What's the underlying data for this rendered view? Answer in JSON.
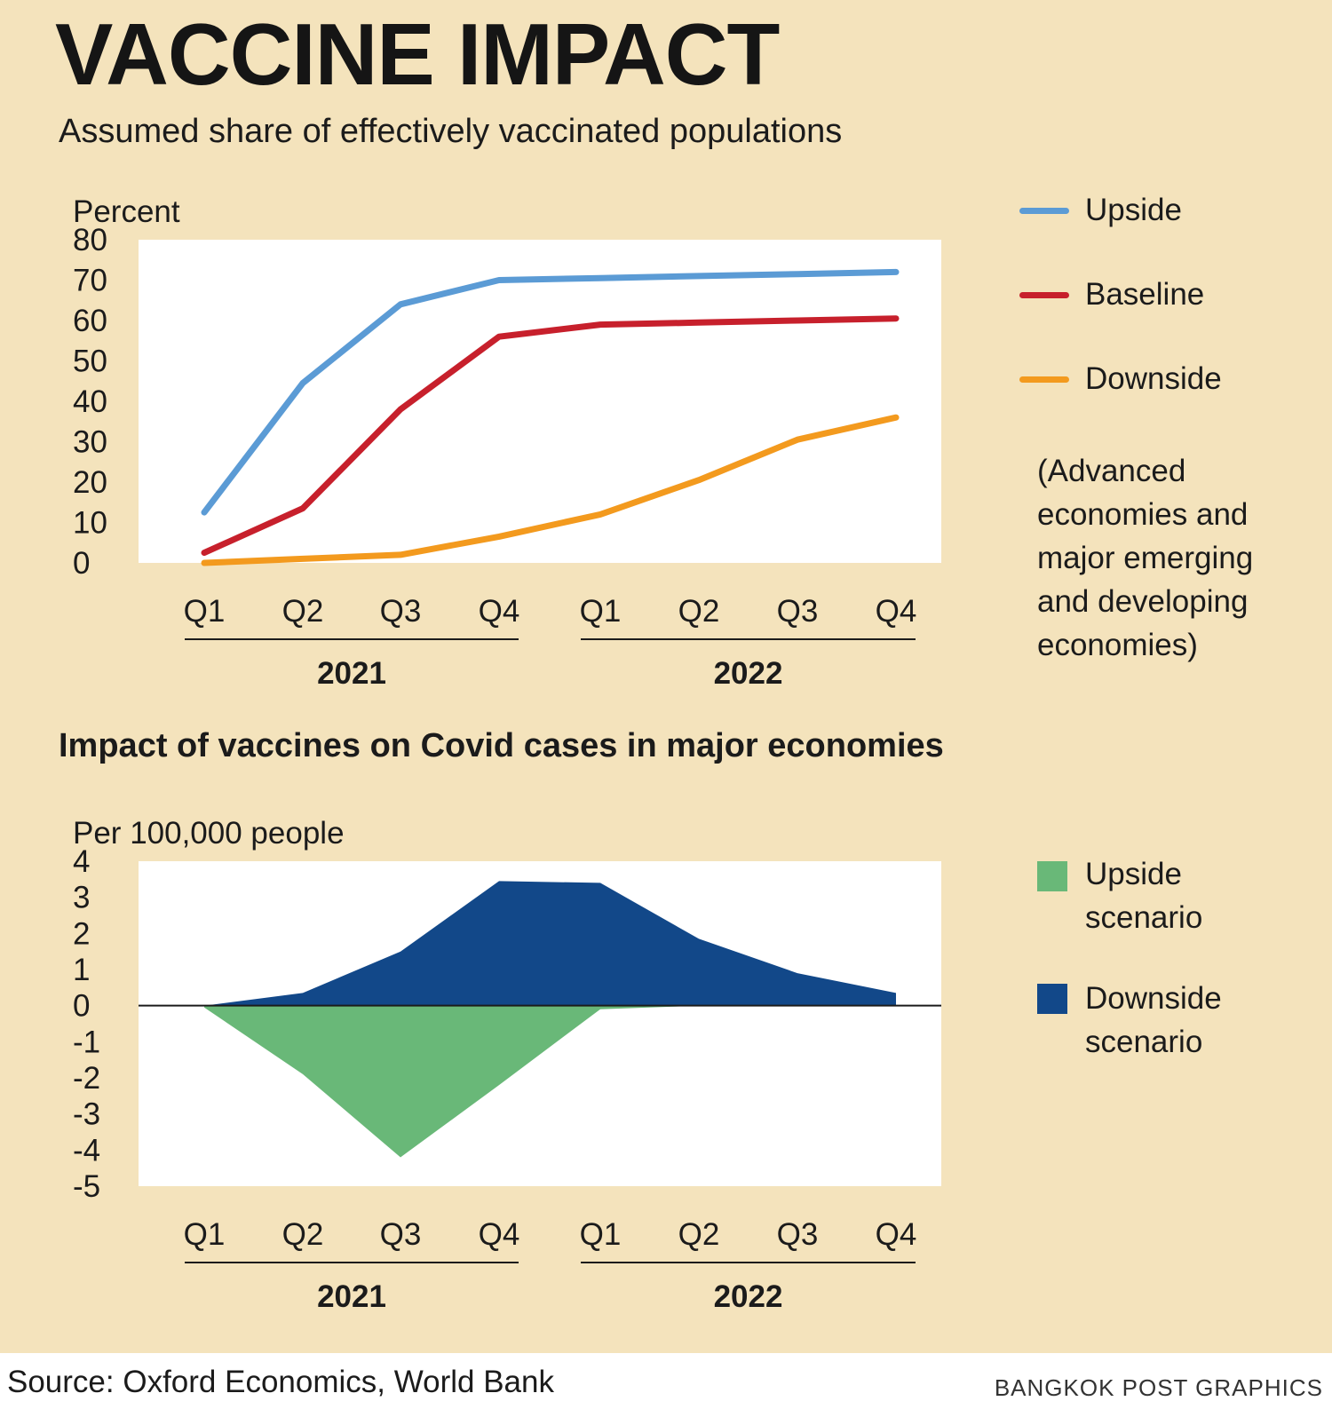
{
  "header": {
    "title": "VACCINE IMPACT",
    "subtitle": "Assumed share of effectively vaccinated populations"
  },
  "chart_data": [
    {
      "type": "line",
      "title": "Assumed share of effectively vaccinated populations",
      "ylabel": "Percent",
      "ylim": [
        0,
        80
      ],
      "yticks": [
        "80",
        "70",
        "60",
        "50",
        "40",
        "30",
        "20",
        "10",
        "0"
      ],
      "categories": [
        "Q1",
        "Q2",
        "Q3",
        "Q4",
        "Q1",
        "Q2",
        "Q3",
        "Q4"
      ],
      "groups": [
        {
          "label": "2021",
          "quarters": 4
        },
        {
          "label": "2022",
          "quarters": 4
        }
      ],
      "series": [
        {
          "name": "Upside",
          "color": "#5b9bd5",
          "values": [
            12.5,
            44.5,
            64,
            70,
            70.5,
            71,
            71.5,
            72
          ]
        },
        {
          "name": "Baseline",
          "color": "#c7202c",
          "values": [
            2.5,
            13.5,
            38,
            56,
            59,
            59.5,
            60,
            60.5
          ]
        },
        {
          "name": "Downside",
          "color": "#f39a1e",
          "values": [
            0,
            1,
            2,
            6.5,
            12,
            20.5,
            30.5,
            36
          ]
        }
      ],
      "legend_note": "(Advanced\neconomies and\nmajor emerging\nand developing\neconomies)",
      "grid": false
    },
    {
      "type": "area",
      "title": "Impact of vaccines on Covid cases in major economies",
      "ylabel": "Per 100,000 people",
      "ylim": [
        -5,
        4
      ],
      "yticks": [
        "4",
        "3",
        "2",
        "1",
        "0",
        "-1",
        "-2",
        "-3",
        "-4",
        "-5"
      ],
      "categories": [
        "Q1",
        "Q2",
        "Q3",
        "Q4",
        "Q1",
        "Q2",
        "Q3",
        "Q4"
      ],
      "groups": [
        {
          "label": "2021",
          "quarters": 4
        },
        {
          "label": "2022",
          "quarters": 4
        }
      ],
      "series": [
        {
          "name": "Upside scenario",
          "color": "#69b878",
          "values": [
            -0.05,
            -1.9,
            -4.2,
            -2.2,
            -0.1,
            0,
            0,
            0
          ]
        },
        {
          "name": "Downside scenario",
          "color": "#124889",
          "values": [
            0,
            0.35,
            1.5,
            3.45,
            3.4,
            1.85,
            0.9,
            0.35
          ]
        }
      ],
      "grid": false
    }
  ],
  "footer": {
    "source": "Source: Oxford Economics, World Bank",
    "credit": "BANGKOK POST GRAPHICS"
  }
}
